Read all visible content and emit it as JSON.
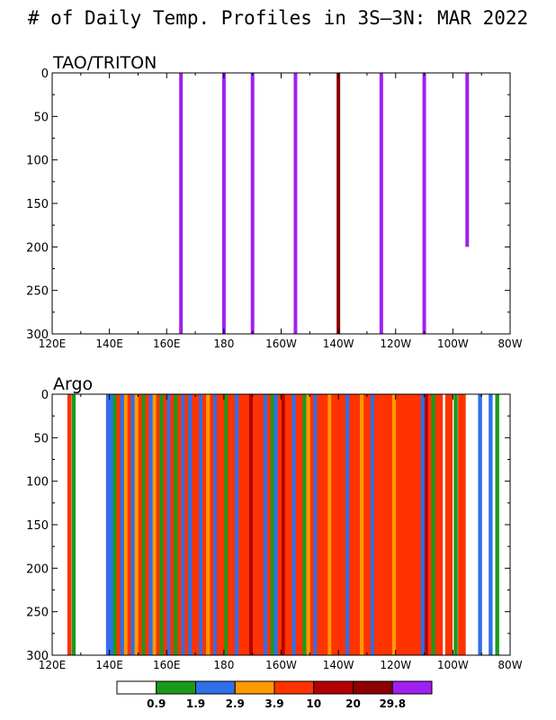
{
  "title": "# of Daily Temp. Profiles in 3S–3N: MAR 2022",
  "chart_data": [
    {
      "type": "bar",
      "panel_label": "TAO/TRITON",
      "x_unit": "longitude",
      "xticks": [
        "120E",
        "140E",
        "160E",
        "180",
        "160W",
        "140W",
        "120W",
        "100W",
        "80W"
      ],
      "xlim": [
        120,
        280
      ],
      "ylim": [
        0,
        300
      ],
      "y_inverted": true,
      "yticks": [
        0,
        50,
        100,
        150,
        200,
        250,
        300
      ],
      "grid": false,
      "bars": [
        {
          "lon": 165,
          "depth": 300,
          "color": "#a020f0"
        },
        {
          "lon": 180,
          "depth": 300,
          "color": "#a020f0"
        },
        {
          "lon": 190,
          "depth": 300,
          "color": "#a020f0"
        },
        {
          "lon": 205,
          "depth": 300,
          "color": "#a020f0"
        },
        {
          "lon": 220,
          "depth": 300,
          "color": "#8b0000"
        },
        {
          "lon": 235,
          "depth": 300,
          "color": "#a020f0"
        },
        {
          "lon": 250,
          "depth": 300,
          "color": "#a020f0"
        },
        {
          "lon": 265,
          "depth": 200,
          "color": "#a020f0"
        }
      ]
    },
    {
      "type": "bar",
      "panel_label": "Argo",
      "x_unit": "longitude",
      "xticks": [
        "120E",
        "140E",
        "160E",
        "180",
        "160W",
        "140W",
        "120W",
        "100W",
        "80W"
      ],
      "xlim": [
        120,
        280
      ],
      "ylim": [
        0,
        300
      ],
      "y_inverted": true,
      "yticks": [
        0,
        50,
        100,
        150,
        200,
        250,
        300
      ],
      "grid": false,
      "bar_width_deg": 1.2,
      "bars": [
        {
          "lon": 126,
          "depth": 300,
          "color": "#ff3300"
        },
        {
          "lon": 127.5,
          "depth": 300,
          "color": "#1a9a1a"
        },
        {
          "lon": 139.5,
          "depth": 300,
          "color": "#2f6fea"
        },
        {
          "lon": 140.8,
          "depth": 300,
          "color": "#2f6fea"
        },
        {
          "lon": 142,
          "depth": 300,
          "color": "#1a9a1a"
        },
        {
          "lon": 143.2,
          "depth": 300,
          "color": "#ff3300"
        },
        {
          "lon": 144.5,
          "depth": 300,
          "color": "#2f6fea"
        },
        {
          "lon": 145.8,
          "depth": 300,
          "color": "#ff9900"
        },
        {
          "lon": 147,
          "depth": 300,
          "color": "#ff3300"
        },
        {
          "lon": 148.2,
          "depth": 300,
          "color": "#2f6fea"
        },
        {
          "lon": 149.5,
          "depth": 300,
          "color": "#ff9900"
        },
        {
          "lon": 150.8,
          "depth": 300,
          "color": "#ff3300"
        },
        {
          "lon": 152,
          "depth": 300,
          "color": "#1a9a1a"
        },
        {
          "lon": 153.2,
          "depth": 300,
          "color": "#ff3300"
        },
        {
          "lon": 154.5,
          "depth": 300,
          "color": "#2f6fea"
        },
        {
          "lon": 155.8,
          "depth": 300,
          "color": "#ff9900"
        },
        {
          "lon": 157,
          "depth": 300,
          "color": "#ff3300"
        },
        {
          "lon": 158.2,
          "depth": 300,
          "color": "#1a9a1a"
        },
        {
          "lon": 159.5,
          "depth": 300,
          "color": "#ff3300"
        },
        {
          "lon": 160.8,
          "depth": 300,
          "color": "#2f6fea"
        },
        {
          "lon": 162,
          "depth": 300,
          "color": "#ff3300"
        },
        {
          "lon": 163.2,
          "depth": 300,
          "color": "#1a9a1a"
        },
        {
          "lon": 164.5,
          "depth": 300,
          "color": "#ff3300"
        },
        {
          "lon": 165.8,
          "depth": 300,
          "color": "#2f6fea"
        },
        {
          "lon": 167,
          "depth": 300,
          "color": "#ff3300"
        },
        {
          "lon": 168.2,
          "depth": 300,
          "color": "#2f6fea"
        },
        {
          "lon": 169.5,
          "depth": 300,
          "color": "#ff3300"
        },
        {
          "lon": 170.8,
          "depth": 300,
          "color": "#ff3300"
        },
        {
          "lon": 172,
          "depth": 300,
          "color": "#2f6fea"
        },
        {
          "lon": 173.2,
          "depth": 300,
          "color": "#ff3300"
        },
        {
          "lon": 174.5,
          "depth": 300,
          "color": "#ff9900"
        },
        {
          "lon": 175.8,
          "depth": 300,
          "color": "#ff3300"
        },
        {
          "lon": 177,
          "depth": 300,
          "color": "#2f6fea"
        },
        {
          "lon": 178.2,
          "depth": 300,
          "color": "#ff3300"
        },
        {
          "lon": 179.5,
          "depth": 300,
          "color": "#ff3300"
        },
        {
          "lon": 180.8,
          "depth": 300,
          "color": "#1a9a1a"
        },
        {
          "lon": 182,
          "depth": 300,
          "color": "#ff3300"
        },
        {
          "lon": 183.2,
          "depth": 300,
          "color": "#ff3300"
        },
        {
          "lon": 184.5,
          "depth": 300,
          "color": "#2f6fea"
        },
        {
          "lon": 185.8,
          "depth": 300,
          "color": "#ff3300"
        },
        {
          "lon": 187,
          "depth": 300,
          "color": "#ff3300"
        },
        {
          "lon": 188.2,
          "depth": 300,
          "color": "#ff3300"
        },
        {
          "lon": 189.5,
          "depth": 300,
          "color": "#b30000"
        },
        {
          "lon": 190.8,
          "depth": 300,
          "color": "#ff3300"
        },
        {
          "lon": 192,
          "depth": 300,
          "color": "#ff3300"
        },
        {
          "lon": 193.2,
          "depth": 300,
          "color": "#ff3300"
        },
        {
          "lon": 194.5,
          "depth": 300,
          "color": "#2f6fea"
        },
        {
          "lon": 195.8,
          "depth": 300,
          "color": "#ff3300"
        },
        {
          "lon": 197,
          "depth": 300,
          "color": "#1a9a1a"
        },
        {
          "lon": 198.2,
          "depth": 300,
          "color": "#2f6fea"
        },
        {
          "lon": 199.5,
          "depth": 300,
          "color": "#ff3300"
        },
        {
          "lon": 200.8,
          "depth": 300,
          "color": "#b30000"
        },
        {
          "lon": 202,
          "depth": 300,
          "color": "#ff3300"
        },
        {
          "lon": 203.2,
          "depth": 300,
          "color": "#ff3300"
        },
        {
          "lon": 204.5,
          "depth": 300,
          "color": "#2f6fea"
        },
        {
          "lon": 205.8,
          "depth": 300,
          "color": "#ff3300"
        },
        {
          "lon": 207,
          "depth": 300,
          "color": "#ff3300"
        },
        {
          "lon": 208.2,
          "depth": 300,
          "color": "#1a9a1a"
        },
        {
          "lon": 209.5,
          "depth": 300,
          "color": "#ff9900"
        },
        {
          "lon": 210.8,
          "depth": 300,
          "color": "#ff3300"
        },
        {
          "lon": 212,
          "depth": 300,
          "color": "#2f6fea"
        },
        {
          "lon": 213.2,
          "depth": 300,
          "color": "#ff3300"
        },
        {
          "lon": 214.5,
          "depth": 300,
          "color": "#ff3300"
        },
        {
          "lon": 215.8,
          "depth": 300,
          "color": "#ff3300"
        },
        {
          "lon": 217,
          "depth": 300,
          "color": "#ff9900"
        },
        {
          "lon": 218.2,
          "depth": 300,
          "color": "#ff3300"
        },
        {
          "lon": 219.5,
          "depth": 300,
          "color": "#ff3300"
        },
        {
          "lon": 220.8,
          "depth": 300,
          "color": "#ff3300"
        },
        {
          "lon": 222,
          "depth": 300,
          "color": "#ff3300"
        },
        {
          "lon": 223.2,
          "depth": 300,
          "color": "#2f6fea"
        },
        {
          "lon": 224.5,
          "depth": 300,
          "color": "#ff3300"
        },
        {
          "lon": 225.8,
          "depth": 300,
          "color": "#ff3300"
        },
        {
          "lon": 227,
          "depth": 300,
          "color": "#ff3300"
        },
        {
          "lon": 228.2,
          "depth": 300,
          "color": "#ff9900"
        },
        {
          "lon": 229.5,
          "depth": 300,
          "color": "#ff3300"
        },
        {
          "lon": 230.8,
          "depth": 300,
          "color": "#ff3300"
        },
        {
          "lon": 232,
          "depth": 300,
          "color": "#2f6fea"
        },
        {
          "lon": 233.2,
          "depth": 300,
          "color": "#ff3300"
        },
        {
          "lon": 234.5,
          "depth": 300,
          "color": "#ff3300"
        },
        {
          "lon": 235.8,
          "depth": 300,
          "color": "#ff3300"
        },
        {
          "lon": 237,
          "depth": 300,
          "color": "#ff3300"
        },
        {
          "lon": 238.2,
          "depth": 300,
          "color": "#ff3300"
        },
        {
          "lon": 239.5,
          "depth": 300,
          "color": "#ff9900"
        },
        {
          "lon": 240.8,
          "depth": 300,
          "color": "#ff3300"
        },
        {
          "lon": 242,
          "depth": 300,
          "color": "#ff3300"
        },
        {
          "lon": 243.2,
          "depth": 300,
          "color": "#ff3300"
        },
        {
          "lon": 244.5,
          "depth": 300,
          "color": "#ff3300"
        },
        {
          "lon": 245.8,
          "depth": 300,
          "color": "#ff3300"
        },
        {
          "lon": 247,
          "depth": 300,
          "color": "#ff3300"
        },
        {
          "lon": 248.2,
          "depth": 300,
          "color": "#ff3300"
        },
        {
          "lon": 249.5,
          "depth": 300,
          "color": "#2f6fea"
        },
        {
          "lon": 250.8,
          "depth": 300,
          "color": "#b30000"
        },
        {
          "lon": 252,
          "depth": 300,
          "color": "#ff3300"
        },
        {
          "lon": 253.2,
          "depth": 300,
          "color": "#1a9a1a"
        },
        {
          "lon": 254.5,
          "depth": 300,
          "color": "#ff3300"
        },
        {
          "lon": 255.8,
          "depth": 300,
          "color": "#ff3300"
        },
        {
          "lon": 258,
          "depth": 300,
          "color": "#ff3300"
        },
        {
          "lon": 259.2,
          "depth": 300,
          "color": "#ff3300"
        },
        {
          "lon": 261,
          "depth": 300,
          "color": "#1a9a1a"
        },
        {
          "lon": 262.5,
          "depth": 300,
          "color": "#ff3300"
        },
        {
          "lon": 263.8,
          "depth": 300,
          "color": "#ff3300"
        },
        {
          "lon": 269.5,
          "depth": 300,
          "color": "#2f6fea"
        },
        {
          "lon": 273.2,
          "depth": 300,
          "color": "#2f6fea"
        },
        {
          "lon": 275.5,
          "depth": 300,
          "color": "#1a9a1a"
        }
      ]
    }
  ],
  "colorbar": {
    "labels": [
      "0.9",
      "1.9",
      "2.9",
      "3.9",
      "10",
      "20",
      "29.8"
    ],
    "colors": [
      "#ffffff",
      "#1a9a1a",
      "#2f6fea",
      "#ff9900",
      "#ff3300",
      "#b30000",
      "#8b0000",
      "#a020f0"
    ]
  }
}
